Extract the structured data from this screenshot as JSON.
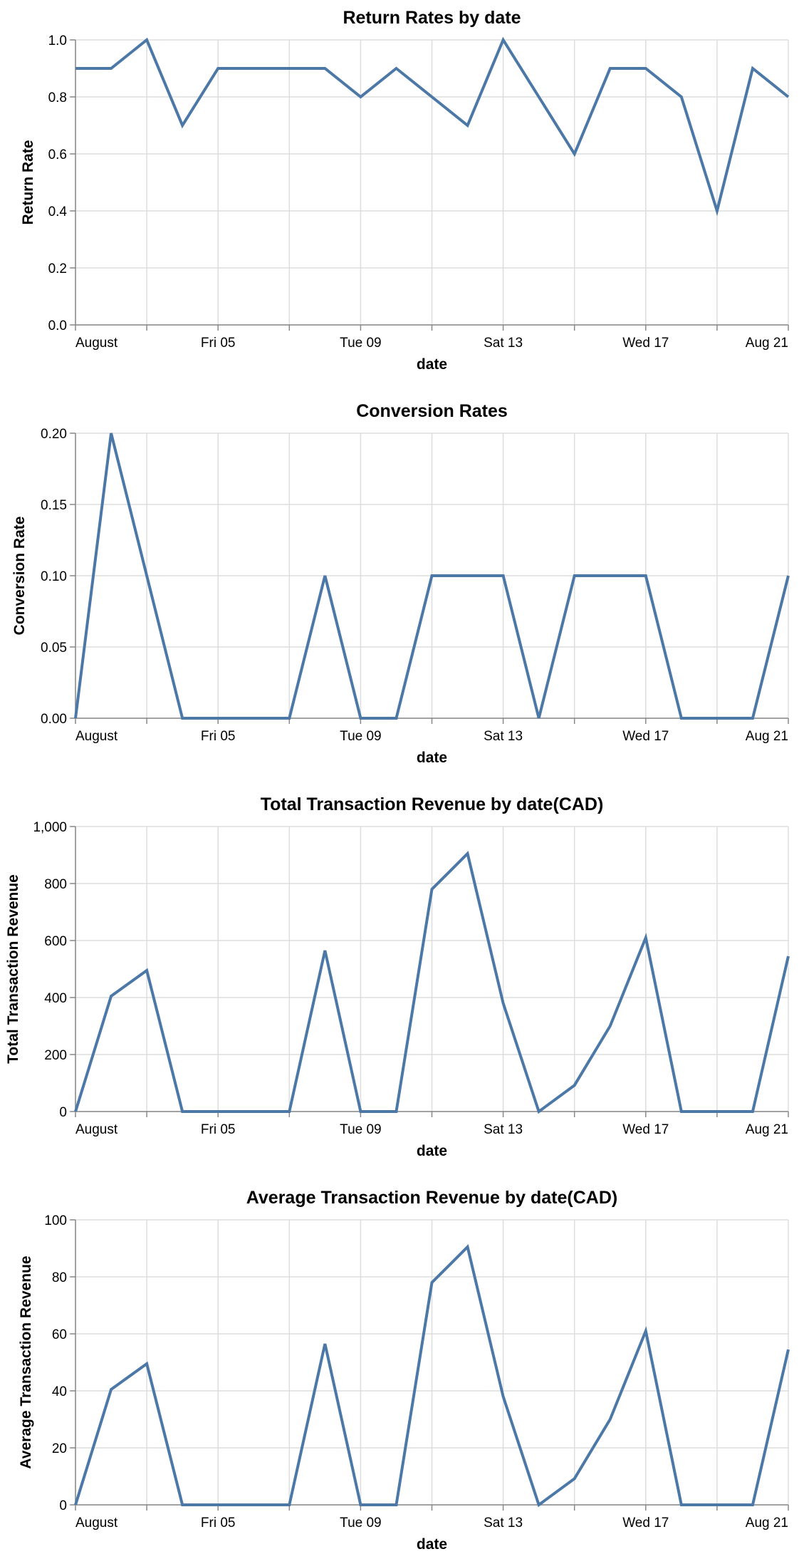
{
  "chart_data": [
    {
      "type": "line",
      "title": "Return Rates by date",
      "xlabel": "date",
      "ylabel": "Return Rate",
      "ylim": [
        0,
        1
      ],
      "yticks": [
        "0.0",
        "0.2",
        "0.4",
        "0.6",
        "0.8",
        "1.0"
      ],
      "ytick_values": [
        0,
        0.2,
        0.4,
        0.6,
        0.8,
        1.0
      ],
      "grid": true,
      "color": "#4c78a8",
      "x": [
        "2022-08-01",
        "2022-08-02",
        "2022-08-03",
        "2022-08-04",
        "2022-08-05",
        "2022-08-06",
        "2022-08-07",
        "2022-08-08",
        "2022-08-09",
        "2022-08-10",
        "2022-08-11",
        "2022-08-12",
        "2022-08-13",
        "2022-08-14",
        "2022-08-15",
        "2022-08-16",
        "2022-08-17",
        "2022-08-18",
        "2022-08-19",
        "2022-08-20",
        "2022-08-21"
      ],
      "series": [
        {
          "values": [
            0.9,
            0.9,
            1.0,
            0.7,
            0.9,
            0.9,
            0.9,
            0.9,
            0.8,
            0.9,
            0.8,
            0.7,
            1.0,
            0.8,
            0.6,
            0.9,
            0.9,
            0.8,
            0.4,
            0.9,
            0.8
          ]
        }
      ]
    },
    {
      "type": "line",
      "title": "Conversion Rates",
      "xlabel": "date",
      "ylabel": "Conversion Rate",
      "ylim": [
        0,
        0.2
      ],
      "yticks": [
        "0.00",
        "0.05",
        "0.10",
        "0.15",
        "0.20"
      ],
      "ytick_values": [
        0,
        0.05,
        0.1,
        0.15,
        0.2
      ],
      "grid": true,
      "color": "#4c78a8",
      "x": [
        "2022-08-01",
        "2022-08-02",
        "2022-08-03",
        "2022-08-04",
        "2022-08-05",
        "2022-08-06",
        "2022-08-07",
        "2022-08-08",
        "2022-08-09",
        "2022-08-10",
        "2022-08-11",
        "2022-08-12",
        "2022-08-13",
        "2022-08-14",
        "2022-08-15",
        "2022-08-16",
        "2022-08-17",
        "2022-08-18",
        "2022-08-19",
        "2022-08-20",
        "2022-08-21"
      ],
      "series": [
        {
          "values": [
            0,
            0.2,
            0.1,
            0,
            0,
            0,
            0,
            0.1,
            0,
            0,
            0.1,
            0.1,
            0.1,
            0,
            0.1,
            0.1,
            0.1,
            0,
            0,
            0,
            0.1
          ]
        }
      ]
    },
    {
      "type": "line",
      "title": "Total Transaction Revenue by date(CAD)",
      "xlabel": "date",
      "ylabel": "Total Transaction Revenue",
      "ylim": [
        0,
        1000
      ],
      "yticks": [
        "0",
        "200",
        "400",
        "600",
        "800",
        "1,000"
      ],
      "ytick_values": [
        0,
        200,
        400,
        600,
        800,
        1000
      ],
      "grid": true,
      "color": "#4c78a8",
      "x": [
        "2022-08-01",
        "2022-08-02",
        "2022-08-03",
        "2022-08-04",
        "2022-08-05",
        "2022-08-06",
        "2022-08-07",
        "2022-08-08",
        "2022-08-09",
        "2022-08-10",
        "2022-08-11",
        "2022-08-12",
        "2022-08-13",
        "2022-08-14",
        "2022-08-15",
        "2022-08-16",
        "2022-08-17",
        "2022-08-18",
        "2022-08-19",
        "2022-08-20",
        "2022-08-21"
      ],
      "series": [
        {
          "values": [
            0,
            405,
            495,
            0,
            0,
            0,
            0,
            565,
            0,
            0,
            780,
            905,
            380,
            0,
            92,
            300,
            610,
            0,
            0,
            0,
            545
          ]
        }
      ]
    },
    {
      "type": "line",
      "title": "Average Transaction Revenue by date(CAD)",
      "xlabel": "date",
      "ylabel": "Average Transaction Revenue",
      "ylim": [
        0,
        100
      ],
      "yticks": [
        "0",
        "20",
        "40",
        "60",
        "80",
        "100"
      ],
      "ytick_values": [
        0,
        20,
        40,
        60,
        80,
        100
      ],
      "grid": true,
      "color": "#4c78a8",
      "x": [
        "2022-08-01",
        "2022-08-02",
        "2022-08-03",
        "2022-08-04",
        "2022-08-05",
        "2022-08-06",
        "2022-08-07",
        "2022-08-08",
        "2022-08-09",
        "2022-08-10",
        "2022-08-11",
        "2022-08-12",
        "2022-08-13",
        "2022-08-14",
        "2022-08-15",
        "2022-08-16",
        "2022-08-17",
        "2022-08-18",
        "2022-08-19",
        "2022-08-20",
        "2022-08-21"
      ],
      "series": [
        {
          "values": [
            0,
            40.5,
            49.5,
            0,
            0,
            0,
            0,
            56.5,
            0,
            0,
            78,
            90.5,
            38,
            0,
            9.2,
            30,
            61,
            0,
            0,
            0,
            54.5
          ]
        }
      ]
    }
  ],
  "x_axis": {
    "tick_labels": [
      {
        "date": "2022-08-01",
        "label": "August"
      },
      {
        "date": "2022-08-05",
        "label": "Fri 05"
      },
      {
        "date": "2022-08-09",
        "label": "Tue 09"
      },
      {
        "date": "2022-08-13",
        "label": "Sat 13"
      },
      {
        "date": "2022-08-17",
        "label": "Wed 17"
      },
      {
        "date": "2022-08-21",
        "label": "Aug 21"
      }
    ],
    "gridline_dates": [
      "2022-08-01",
      "2022-08-03",
      "2022-08-05",
      "2022-08-07",
      "2022-08-09",
      "2022-08-11",
      "2022-08-13",
      "2022-08-15",
      "2022-08-17",
      "2022-08-19",
      "2022-08-21"
    ]
  }
}
